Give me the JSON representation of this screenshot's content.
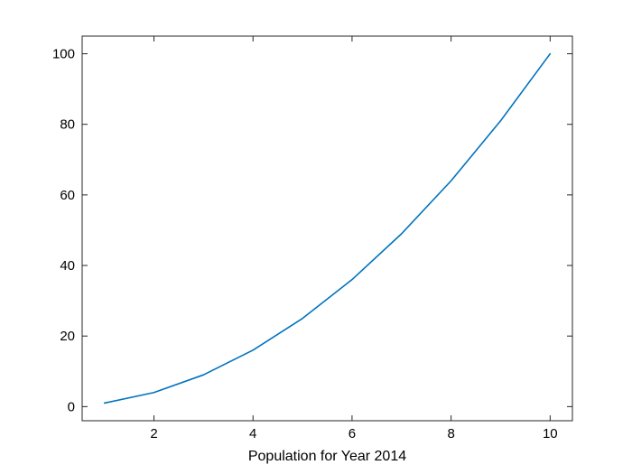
{
  "chart_data": {
    "type": "line",
    "title": "",
    "xlabel": "Population for Year 2014",
    "ylabel": "",
    "x": [
      1,
      2,
      3,
      4,
      5,
      6,
      7,
      8,
      9,
      10
    ],
    "series": [
      {
        "values": [
          1,
          4,
          9,
          16,
          25,
          36,
          49,
          64,
          81,
          100
        ]
      }
    ],
    "xlim": [
      0.55,
      10.45
    ],
    "ylim": [
      -4,
      105
    ],
    "xticks": [
      2,
      4,
      6,
      8,
      10
    ],
    "yticks": [
      0,
      20,
      40,
      60,
      80,
      100
    ],
    "xtick_labels": [
      "2",
      "4",
      "6",
      "8",
      "10"
    ],
    "ytick_labels": [
      "0",
      "20",
      "40",
      "60",
      "80",
      "100"
    ],
    "grid": false,
    "legend": "none",
    "tick_direction": "in",
    "line_color": "#0072BD",
    "axis_color": "#262626"
  }
}
